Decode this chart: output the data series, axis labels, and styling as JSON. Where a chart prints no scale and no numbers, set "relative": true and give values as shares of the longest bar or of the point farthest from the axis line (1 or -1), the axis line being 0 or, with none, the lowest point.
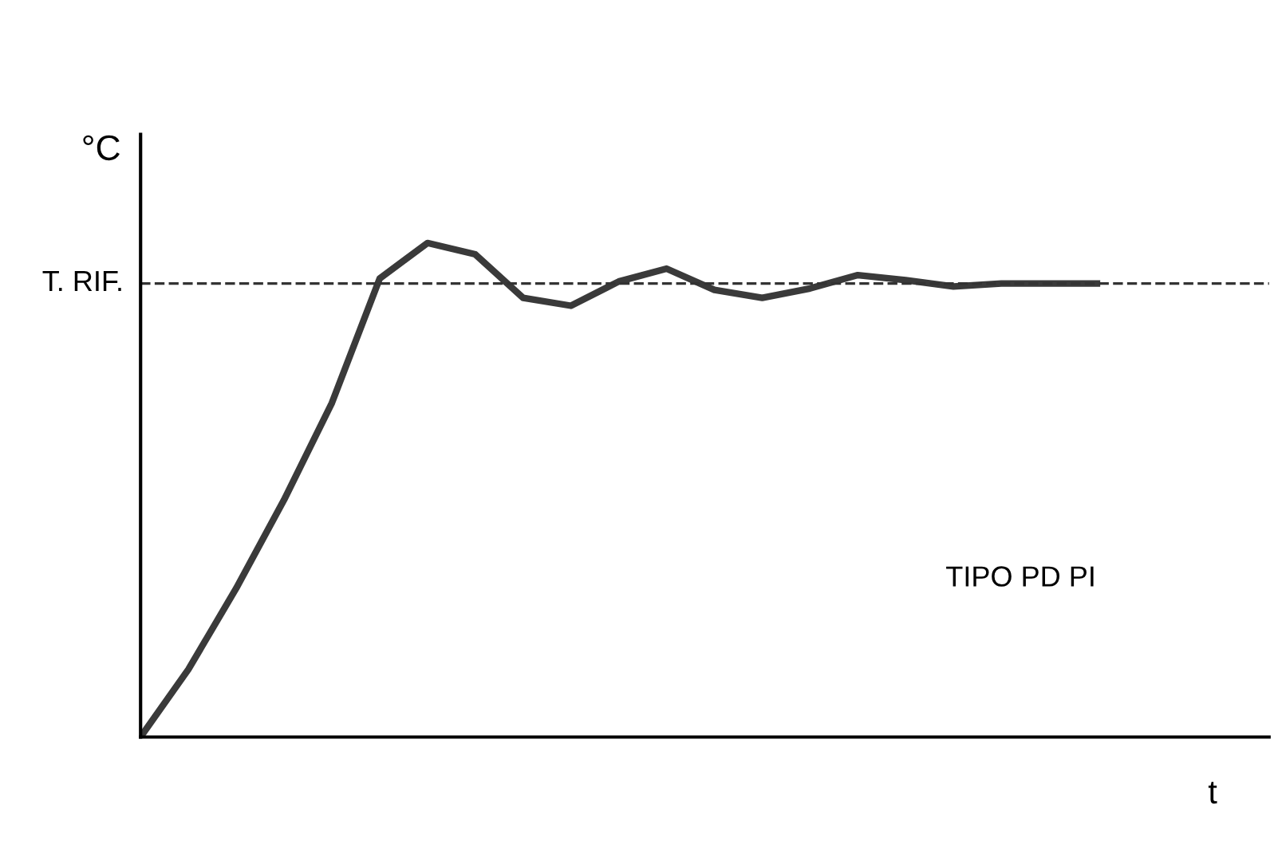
{
  "chart_data": {
    "type": "line",
    "relative": true,
    "ylabel": "°C",
    "xlabel": "t",
    "categories": [
      null,
      null,
      null,
      null,
      null,
      null,
      null,
      null,
      null,
      null,
      null,
      null,
      null,
      null,
      null,
      null,
      null,
      null,
      null,
      null,
      null
    ],
    "series": [
      {
        "color": "#3a3a3a",
        "values": [
          0,
          0.137,
          0.301,
          0.48,
          0.676,
          0.928,
          1.0,
          0.977,
          0.889,
          0.873,
          0.922,
          0.948,
          0.905,
          0.889,
          0.908,
          0.935,
          0.925,
          0.912,
          0.918,
          0.918,
          0.918
        ]
      }
    ],
    "ref_lines": [
      {
        "axis": "y",
        "value": 0.918,
        "label": "T. RIF.",
        "color": "#333333",
        "line_style": "dashed"
      }
    ],
    "annotations": [
      "TIPO PD PI"
    ],
    "legend": false,
    "marker": "none",
    "line_style": "solid"
  }
}
